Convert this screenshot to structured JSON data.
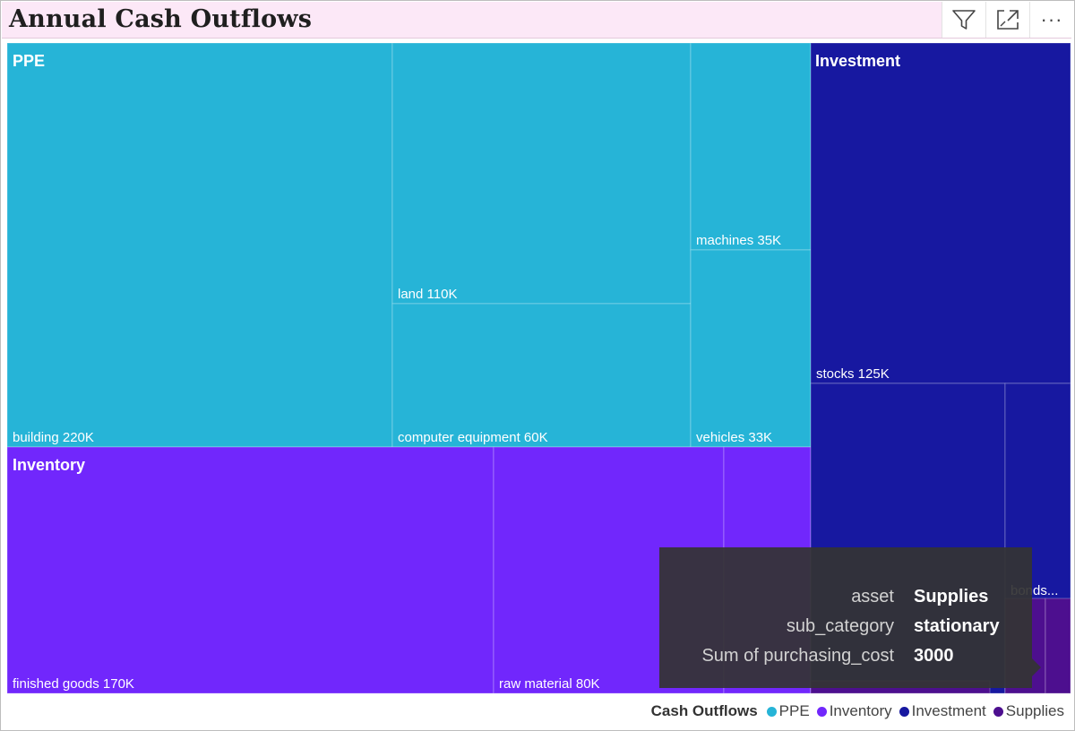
{
  "title": "Annual Cash Outflows",
  "toolbar": {
    "filter_icon": "filter-icon",
    "focus_icon": "focus-mode-icon",
    "more_label": "···"
  },
  "chart_data": {
    "type": "treemap",
    "groups": [
      {
        "name": "PPE",
        "color": "#26b4d7",
        "items": [
          {
            "name": "building",
            "value": 220000,
            "label": "building 220K"
          },
          {
            "name": "land",
            "value": 110000,
            "label": "land 110K"
          },
          {
            "name": "computer equipment",
            "value": 60000,
            "label": "computer equipment 60K"
          },
          {
            "name": "machines",
            "value": 35000,
            "label": "machines 35K"
          },
          {
            "name": "vehicles",
            "value": 33000,
            "label": "vehicles 33K"
          }
        ]
      },
      {
        "name": "Inventory",
        "color": "#7127fc",
        "items": [
          {
            "name": "finished goods",
            "value": 170000,
            "label": "finished goods 170K"
          },
          {
            "name": "raw material",
            "value": 80000,
            "label": "raw material 80K"
          },
          {
            "name": "",
            "value": null,
            "label": ""
          }
        ]
      },
      {
        "name": "Investment",
        "color": "#1718a0",
        "items": [
          {
            "name": "stocks",
            "value": 125000,
            "label": "stocks 125K"
          },
          {
            "name": "",
            "value": null,
            "label": ""
          },
          {
            "name": "bonds",
            "value": null,
            "label": "bonds..."
          }
        ]
      },
      {
        "name": "Supplies",
        "color": "#4d0f8f",
        "items": [
          {
            "name": "stationary",
            "value": 3000,
            "label": ""
          },
          {
            "name": "",
            "value": null,
            "label": ""
          },
          {
            "name": "",
            "value": null,
            "label": ""
          }
        ]
      }
    ],
    "legend": {
      "title": "Cash Outflows",
      "position": "bottom-right",
      "entries": [
        {
          "name": "PPE",
          "color": "#26b4d7"
        },
        {
          "name": "Inventory",
          "color": "#7127fc"
        },
        {
          "name": "Investment",
          "color": "#1718a0"
        },
        {
          "name": "Supplies",
          "color": "#4d0f8f"
        }
      ]
    }
  },
  "tooltip": {
    "rows": [
      {
        "key": "asset",
        "value": "Supplies"
      },
      {
        "key": "sub_category",
        "value": "stationary"
      },
      {
        "key": "Sum of purchasing_cost",
        "value": "3000"
      }
    ]
  }
}
